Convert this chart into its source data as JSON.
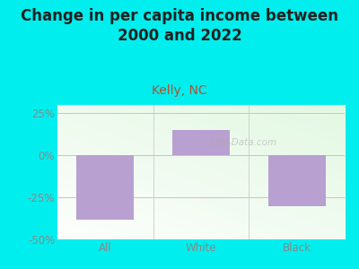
{
  "title": "Change in per capita income between\n2000 and 2022",
  "subtitle": "Kelly, NC",
  "categories": [
    "All",
    "White",
    "Black"
  ],
  "values": [
    -38,
    15,
    -30
  ],
  "bar_color": "#b8a0d0",
  "background_color": "#00EEEE",
  "title_fontsize": 12,
  "subtitle_fontsize": 10,
  "subtitle_color": "#b05030",
  "tick_color": "#888888",
  "tick_fontsize": 8.5,
  "ylim": [
    -50,
    30
  ],
  "yticks": [
    -50,
    -25,
    0,
    25
  ],
  "watermark": "City-Data.com"
}
